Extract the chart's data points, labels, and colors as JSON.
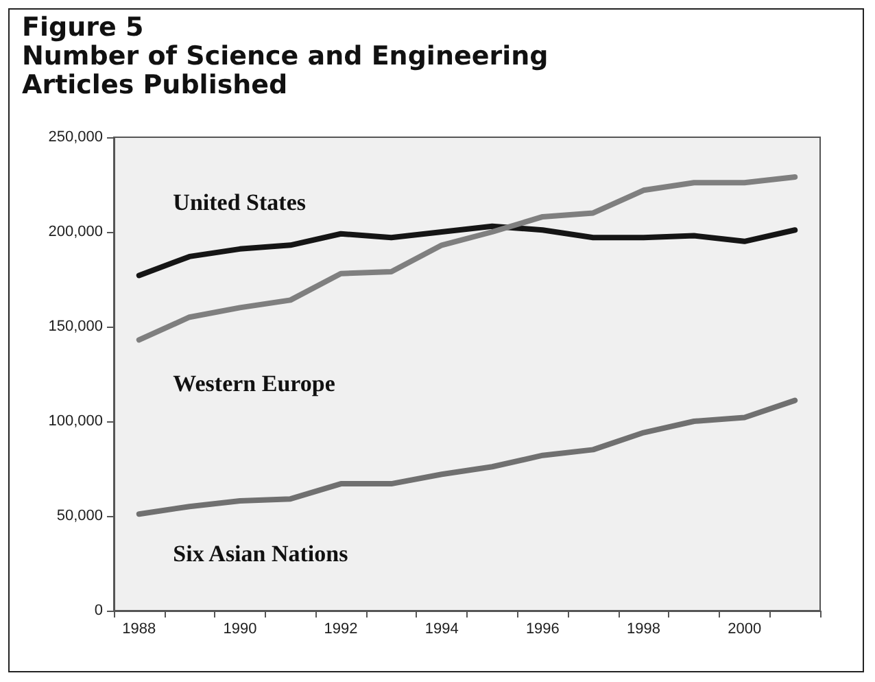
{
  "chart_data": {
    "type": "line",
    "title": "Figure 5\nNumber of Science and Engineering\nArticles Published",
    "categories": [
      "1988",
      null,
      "1990",
      null,
      "1992",
      null,
      "1994",
      null,
      "1996",
      null,
      "1998",
      null,
      "2000",
      null
    ],
    "series": [
      {
        "name": "United States",
        "color": "#151515",
        "values": [
          177000,
          187000,
          191000,
          193000,
          199000,
          197000,
          200000,
          203000,
          201000,
          197000,
          197000,
          198000,
          195000,
          201000
        ]
      },
      {
        "name": "Western Europe",
        "color": "#7f7f7f",
        "values": [
          143000,
          155000,
          160000,
          164000,
          178000,
          179000,
          193000,
          200000,
          208000,
          210000,
          222000,
          226000,
          226000,
          229000
        ]
      },
      {
        "name": "Six Asian Nations",
        "color": "#707070",
        "values": [
          51000,
          55000,
          58000,
          59000,
          67000,
          67000,
          72000,
          76000,
          82000,
          85000,
          94000,
          100000,
          102000,
          111000
        ]
      }
    ],
    "ylim": [
      0,
      250000
    ],
    "yticks": [
      0,
      {
        "value": 50000,
        "label": "50,000"
      },
      {
        "value": 100000,
        "label": "100,000"
      },
      {
        "value": 150000,
        "label": "150,000"
      },
      {
        "value": 200000,
        "label": "200,000"
      },
      {
        "value": 250000,
        "label": "250,000"
      }
    ],
    "grid": false,
    "legend": false,
    "marker": "none",
    "line_style": "solid"
  }
}
